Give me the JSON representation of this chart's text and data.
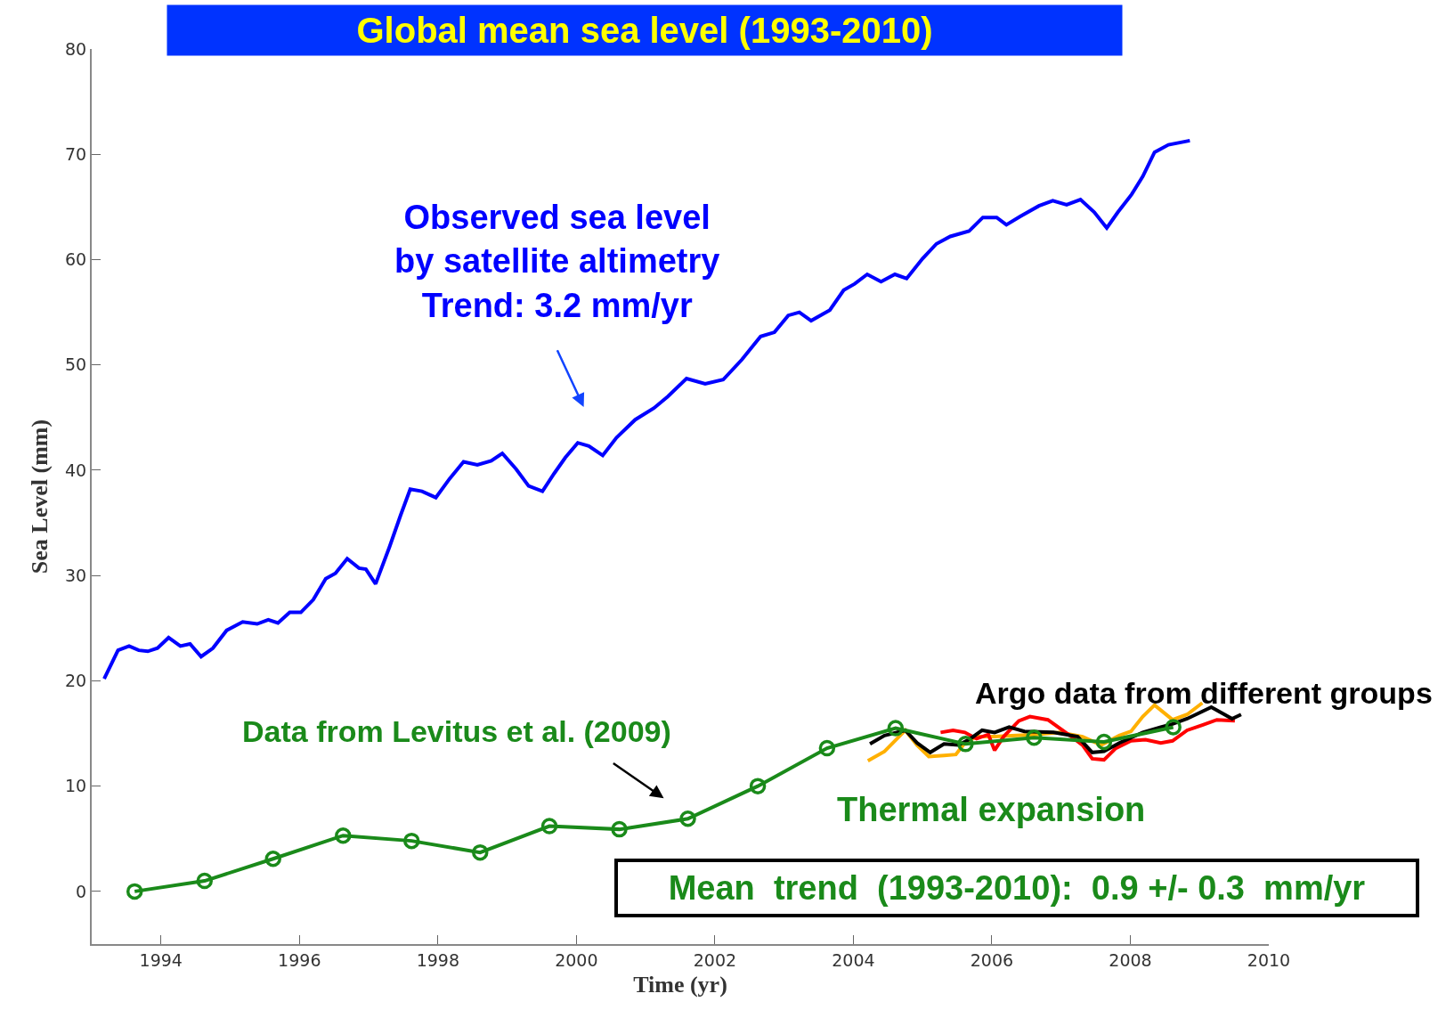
{
  "chart_data": {
    "type": "line",
    "title": "Global mean sea level (1993-2010)",
    "xlabel": "Time (yr)",
    "ylabel": "Sea Level (mm)",
    "xlim": [
      1993,
      2010
    ],
    "xticks": [
      1994,
      1996,
      1998,
      2000,
      2002,
      2004,
      2006,
      2008,
      2010
    ],
    "ylim": [
      -5,
      80
    ],
    "yticks": [
      0,
      10,
      20,
      30,
      40,
      50,
      60,
      70,
      80
    ],
    "grid": false,
    "series": [
      {
        "color": "#0000ff",
        "marker": "none",
        "x": [
          1993.18,
          1993.38,
          1993.54,
          1993.68,
          1993.81,
          1993.95,
          1994.11,
          1994.28,
          1994.42,
          1994.58,
          1994.75,
          1994.95,
          1995.18,
          1995.39,
          1995.55,
          1995.69,
          1995.86,
          1996.02,
          1996.2,
          1996.38,
          1996.52,
          1996.69,
          1996.86,
          1996.96,
          1997.1,
          1997.3,
          1997.46,
          1997.6,
          1997.77,
          1997.97,
          1998.17,
          1998.37,
          1998.57,
          1998.77,
          1998.93,
          1999.13,
          1999.31,
          1999.51,
          1999.68,
          1999.84,
          2000.02,
          2000.18,
          2000.38,
          2000.58,
          2000.85,
          2001.12,
          2001.32,
          2001.59,
          2001.86,
          2002.12,
          2002.39,
          2002.66,
          2002.86,
          2003.06,
          2003.22,
          2003.39,
          2003.66,
          2003.86,
          2004.02,
          2004.2,
          2004.4,
          2004.6,
          2004.77,
          2005.0,
          2005.2,
          2005.4,
          2005.67,
          2005.87,
          2006.07,
          2006.21,
          2006.41,
          2006.68,
          2006.88,
          2007.08,
          2007.28,
          2007.48,
          2007.66,
          2007.82,
          2008.02,
          2008.18,
          2008.35,
          2008.55,
          2008.86
        ],
        "values": [
          20.2,
          22.9,
          23.3,
          22.9,
          22.8,
          23.1,
          24.1,
          23.3,
          23.5,
          22.3,
          23.1,
          24.8,
          25.6,
          25.4,
          25.8,
          25.5,
          26.5,
          26.5,
          27.7,
          29.7,
          30.2,
          31.6,
          30.7,
          30.6,
          29.2,
          32.7,
          35.7,
          38.2,
          38.0,
          37.4,
          39.2,
          40.8,
          40.5,
          40.9,
          41.6,
          40.1,
          38.5,
          38.0,
          39.7,
          41.2,
          42.6,
          42.3,
          41.4,
          43.1,
          44.8,
          45.9,
          47.0,
          48.7,
          48.2,
          48.6,
          50.5,
          52.7,
          53.1,
          54.7,
          55.0,
          54.2,
          55.2,
          57.1,
          57.7,
          58.6,
          57.9,
          58.6,
          58.2,
          60.1,
          61.5,
          62.2,
          62.7,
          64.0,
          64.0,
          63.3,
          64.1,
          65.1,
          65.6,
          65.2,
          65.7,
          64.5,
          63.0,
          64.5,
          66.2,
          67.9,
          70.2,
          70.9,
          71.3
        ]
      },
      {
        "color": "#ffb000",
        "marker": "none",
        "x": [
          2004.21,
          2004.45,
          2004.66,
          2004.75,
          2004.92,
          2005.09,
          2005.31,
          2005.48,
          2005.61,
          2005.78,
          2006.04,
          2006.29,
          2006.64,
          2006.98,
          2007.31,
          2007.58,
          2007.84,
          2008.01,
          2008.18,
          2008.35,
          2008.61,
          2008.82,
          2009.04
        ],
        "values": [
          12.4,
          13.3,
          14.7,
          15.3,
          13.9,
          12.8,
          12.9,
          13.0,
          14.1,
          14.7,
          14.7,
          14.8,
          14.9,
          15.1,
          14.7,
          13.9,
          14.8,
          15.2,
          16.6,
          17.7,
          16.3,
          16.8,
          17.9
        ]
      },
      {
        "color": "#ff0000",
        "marker": "none",
        "x": [
          2005.26,
          2005.44,
          2005.61,
          2005.78,
          2005.95,
          2006.04,
          2006.17,
          2006.39,
          2006.55,
          2006.81,
          2006.98,
          2007.15,
          2007.31,
          2007.45,
          2007.62,
          2007.79,
          2008.01,
          2008.22,
          2008.44,
          2008.61,
          2008.82,
          2009.04,
          2009.25,
          2009.51
        ],
        "values": [
          15.1,
          15.3,
          15.1,
          14.5,
          14.9,
          13.4,
          14.7,
          16.2,
          16.6,
          16.3,
          15.5,
          14.7,
          13.9,
          12.6,
          12.5,
          13.6,
          14.3,
          14.4,
          14.1,
          14.3,
          15.3,
          15.8,
          16.3,
          16.2
        ]
      },
      {
        "color": "#000000",
        "marker": "none",
        "x": [
          2004.24,
          2004.45,
          2004.75,
          2004.92,
          2005.11,
          2005.31,
          2005.52,
          2005.69,
          2005.86,
          2006.04,
          2006.25,
          2006.47,
          2006.89,
          2007.24,
          2007.45,
          2007.62,
          2007.84,
          2008.18,
          2008.44,
          2008.61,
          2008.82,
          2009.17,
          2009.47,
          2009.6
        ],
        "values": [
          14.0,
          14.8,
          15.3,
          14.1,
          13.2,
          14.0,
          13.9,
          14.5,
          15.3,
          15.1,
          15.6,
          15.2,
          15.1,
          14.7,
          13.2,
          13.3,
          14.1,
          15.1,
          15.6,
          15.9,
          16.4,
          17.5,
          16.4,
          16.8
        ]
      },
      {
        "color": "#1a8a1a",
        "marker": "circle",
        "x": [
          1993.62,
          1994.63,
          1995.62,
          1996.63,
          1997.62,
          1998.61,
          1999.61,
          2000.62,
          2001.61,
          2002.62,
          2003.62,
          2004.61,
          2005.62,
          2006.61,
          2007.62,
          2008.62
        ],
        "values": [
          0.0,
          1.0,
          3.1,
          5.3,
          4.8,
          3.7,
          6.2,
          5.9,
          6.9,
          10.0,
          13.6,
          15.5,
          14.0,
          14.6,
          14.2,
          15.6
        ]
      }
    ],
    "annotations": [
      "Observed sea level\nby satellite altimetry\nTrend: 3.2 mm/yr",
      "Data from Levitus et al. (2009)",
      "Argo data from different groups",
      "Thermal expansion",
      "Mean  trend  (1993-2010):  0.9 +/- 0.3  mm/yr"
    ]
  }
}
